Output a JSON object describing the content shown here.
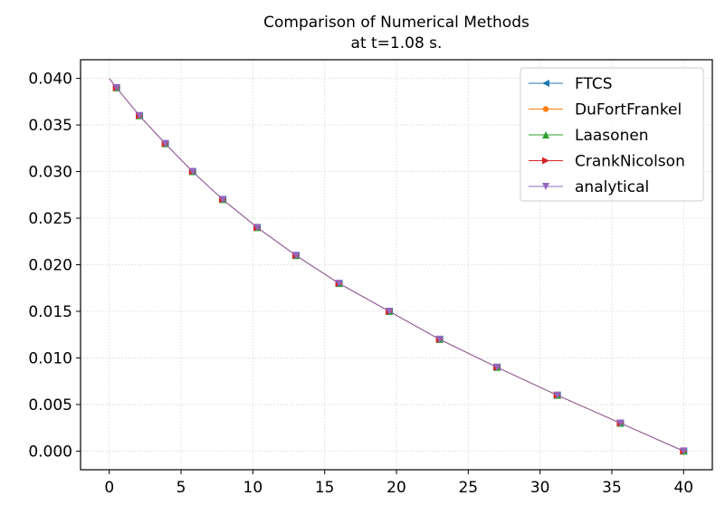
{
  "chart_data": {
    "type": "line",
    "title": "Comparison of Numerical Methods",
    "subtitle": "at t=1.08 s.",
    "xlabel": "",
    "ylabel": "",
    "xlim": [
      -2,
      42
    ],
    "ylim": [
      -0.002,
      0.042
    ],
    "x_ticks": [
      0,
      5,
      10,
      15,
      20,
      25,
      30,
      35,
      40
    ],
    "y_ticks": [
      0.0,
      0.005,
      0.01,
      0.015,
      0.02,
      0.025,
      0.03,
      0.035,
      0.04
    ],
    "y_tick_labels": [
      "0.000",
      "0.005",
      "0.010",
      "0.015",
      "0.020",
      "0.025",
      "0.030",
      "0.035",
      "0.040"
    ],
    "grid": true,
    "legend_position": "top-right",
    "x": [
      0.0,
      0.5,
      2.1,
      3.9,
      5.8,
      7.9,
      10.3,
      13.0,
      16.0,
      19.5,
      23.0,
      27.0,
      31.2,
      35.6,
      40.0
    ],
    "series": [
      {
        "name": "FTCS",
        "color": "#1f77b4",
        "marker": "triangle-left",
        "values": [
          0.04,
          0.039,
          0.036,
          0.033,
          0.03,
          0.027,
          0.024,
          0.021,
          0.018,
          0.015,
          0.012,
          0.009,
          0.006,
          0.003,
          0.0
        ]
      },
      {
        "name": "DuFortFrankel",
        "color": "#ff7f0e",
        "marker": "circle",
        "values": [
          0.04,
          0.039,
          0.036,
          0.033,
          0.03,
          0.027,
          0.024,
          0.021,
          0.018,
          0.015,
          0.012,
          0.009,
          0.006,
          0.003,
          0.0
        ]
      },
      {
        "name": "Laasonen",
        "color": "#2ca02c",
        "marker": "triangle-up",
        "values": [
          0.04,
          0.039,
          0.036,
          0.033,
          0.03,
          0.027,
          0.024,
          0.021,
          0.018,
          0.015,
          0.012,
          0.009,
          0.006,
          0.003,
          0.0
        ]
      },
      {
        "name": "CrankNicolson",
        "color": "#d62728",
        "marker": "triangle-right",
        "values": [
          0.04,
          0.039,
          0.036,
          0.033,
          0.03,
          0.027,
          0.024,
          0.021,
          0.018,
          0.015,
          0.012,
          0.009,
          0.006,
          0.003,
          0.0
        ]
      },
      {
        "name": "analytical",
        "color": "#9467bd",
        "marker": "triangle-down",
        "values": [
          0.04,
          0.039,
          0.036,
          0.033,
          0.03,
          0.027,
          0.024,
          0.021,
          0.018,
          0.015,
          0.012,
          0.009,
          0.006,
          0.003,
          0.0
        ]
      }
    ]
  }
}
